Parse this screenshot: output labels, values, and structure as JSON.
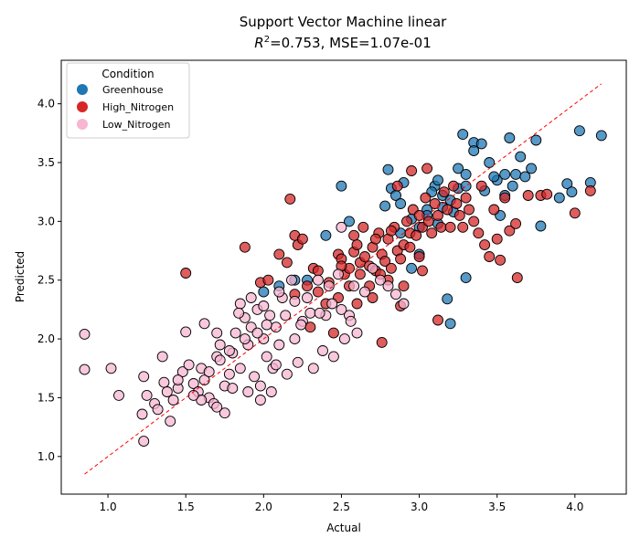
{
  "chart_data": {
    "type": "scatter",
    "title": "Support Vector Machine linear",
    "subtitle_prefix": "R",
    "subtitle_sup": "2",
    "subtitle_rest": "=0.753, MSE=1.07e-01",
    "xlabel": "Actual",
    "ylabel": "Predicted",
    "xlim": [
      0.7,
      4.33
    ],
    "ylim": [
      0.68,
      4.37
    ],
    "xticks": [
      "1.0",
      "1.5",
      "2.0",
      "2.5",
      "3.0",
      "3.5",
      "4.0"
    ],
    "yticks": [
      "1.0",
      "1.5",
      "2.0",
      "2.5",
      "3.0",
      "3.5",
      "4.0"
    ],
    "grid": false,
    "legend": {
      "title": "Condition",
      "placement": "top-left"
    },
    "reference_line": {
      "from": [
        0.85,
        0.85
      ],
      "to": [
        4.17,
        4.17
      ],
      "color": "#ff0000",
      "style": "dashed"
    },
    "series": [
      {
        "name": "Greenhouse",
        "color": "#1f77b4",
        "points": [
          [
            2.5,
            3.3
          ],
          [
            2.8,
            3.44
          ],
          [
            2.82,
            3.28
          ],
          [
            2.85,
            3.22
          ],
          [
            2.9,
            3.33
          ],
          [
            2.88,
            3.15
          ],
          [
            2.95,
            3.02
          ],
          [
            3.0,
            2.95
          ],
          [
            3.05,
            3.1
          ],
          [
            3.1,
            3.3
          ],
          [
            3.12,
            3.35
          ],
          [
            3.15,
            3.22
          ],
          [
            3.2,
            3.18
          ],
          [
            3.22,
            3.08
          ],
          [
            3.25,
            3.28
          ],
          [
            3.25,
            3.45
          ],
          [
            3.28,
            3.74
          ],
          [
            3.3,
            3.4
          ],
          [
            3.35,
            3.67
          ],
          [
            3.35,
            3.6
          ],
          [
            3.4,
            3.66
          ],
          [
            3.45,
            3.5
          ],
          [
            3.5,
            3.35
          ],
          [
            3.55,
            3.4
          ],
          [
            3.58,
            3.71
          ],
          [
            3.52,
            3.05
          ],
          [
            3.6,
            3.3
          ],
          [
            3.62,
            3.4
          ],
          [
            3.65,
            3.55
          ],
          [
            3.68,
            3.38
          ],
          [
            3.72,
            3.45
          ],
          [
            3.75,
            3.69
          ],
          [
            3.78,
            2.96
          ],
          [
            3.95,
            3.32
          ],
          [
            3.98,
            3.25
          ],
          [
            4.03,
            3.77
          ],
          [
            4.1,
            3.33
          ],
          [
            4.17,
            3.73
          ],
          [
            3.9,
            3.2
          ],
          [
            3.2,
            2.13
          ],
          [
            3.3,
            2.52
          ],
          [
            3.18,
            2.34
          ],
          [
            2.2,
            2.5
          ],
          [
            2.28,
            2.5
          ],
          [
            2.0,
            2.4
          ],
          [
            2.1,
            2.45
          ],
          [
            2.55,
            3.0
          ],
          [
            2.4,
            2.88
          ],
          [
            3.0,
            2.72
          ],
          [
            2.95,
            2.6
          ],
          [
            3.08,
            3.25
          ],
          [
            3.15,
            3.12
          ],
          [
            3.05,
            3.05
          ],
          [
            2.78,
            3.13
          ],
          [
            3.3,
            3.3
          ],
          [
            3.48,
            3.38
          ],
          [
            3.42,
            3.26
          ],
          [
            3.55,
            3.22
          ],
          [
            2.88,
            2.9
          ],
          [
            3.12,
            2.98
          ]
        ]
      },
      {
        "name": "High_Nitrogen",
        "color": "#d62728",
        "points": [
          [
            1.5,
            2.56
          ],
          [
            1.88,
            2.78
          ],
          [
            2.17,
            3.19
          ],
          [
            1.98,
            2.48
          ],
          [
            2.03,
            2.5
          ],
          [
            2.1,
            2.72
          ],
          [
            2.15,
            2.65
          ],
          [
            2.2,
            2.88
          ],
          [
            2.22,
            2.8
          ],
          [
            2.25,
            2.85
          ],
          [
            2.28,
            2.45
          ],
          [
            2.2,
            2.38
          ],
          [
            2.32,
            2.6
          ],
          [
            2.35,
            2.4
          ],
          [
            2.4,
            2.3
          ],
          [
            2.48,
            2.72
          ],
          [
            2.5,
            2.68
          ],
          [
            2.52,
            2.55
          ],
          [
            2.55,
            2.6
          ],
          [
            2.58,
            2.74
          ],
          [
            2.6,
            2.8
          ],
          [
            2.62,
            2.65
          ],
          [
            2.65,
            2.7
          ],
          [
            2.68,
            2.62
          ],
          [
            2.7,
            2.78
          ],
          [
            2.72,
            2.58
          ],
          [
            2.74,
            2.9
          ],
          [
            2.76,
            2.72
          ],
          [
            2.78,
            2.66
          ],
          [
            2.8,
            2.85
          ],
          [
            2.82,
            2.6
          ],
          [
            2.84,
            2.95
          ],
          [
            2.86,
            2.75
          ],
          [
            2.88,
            2.68
          ],
          [
            2.9,
            2.8
          ],
          [
            2.92,
            3.0
          ],
          [
            2.94,
            2.9
          ],
          [
            2.96,
            3.1
          ],
          [
            2.98,
            2.88
          ],
          [
            3.0,
            3.05
          ],
          [
            3.02,
            2.95
          ],
          [
            3.04,
            3.2
          ],
          [
            3.06,
            3.0
          ],
          [
            3.08,
            2.9
          ],
          [
            3.1,
            3.15
          ],
          [
            3.12,
            3.05
          ],
          [
            3.14,
            2.95
          ],
          [
            3.16,
            3.25
          ],
          [
            3.18,
            3.1
          ],
          [
            3.2,
            2.95
          ],
          [
            3.22,
            3.3
          ],
          [
            3.24,
            3.15
          ],
          [
            3.26,
            3.05
          ],
          [
            3.28,
            2.95
          ],
          [
            3.3,
            3.2
          ],
          [
            3.32,
            3.1
          ],
          [
            3.35,
            3.0
          ],
          [
            3.38,
            2.9
          ],
          [
            3.4,
            3.3
          ],
          [
            3.42,
            2.8
          ],
          [
            3.45,
            2.7
          ],
          [
            3.48,
            3.1
          ],
          [
            3.5,
            2.85
          ],
          [
            3.52,
            2.67
          ],
          [
            3.55,
            3.2
          ],
          [
            3.58,
            2.92
          ],
          [
            3.62,
            2.98
          ],
          [
            3.63,
            2.52
          ],
          [
            3.7,
            3.22
          ],
          [
            3.78,
            3.22
          ],
          [
            3.82,
            3.23
          ],
          [
            4.0,
            3.07
          ],
          [
            4.1,
            3.26
          ],
          [
            2.76,
            1.97
          ],
          [
            3.12,
            2.16
          ],
          [
            2.88,
            2.28
          ],
          [
            2.6,
            2.3
          ],
          [
            2.7,
            2.35
          ],
          [
            2.45,
            2.05
          ],
          [
            2.48,
            2.35
          ],
          [
            2.95,
            3.43
          ],
          [
            3.05,
            3.45
          ],
          [
            2.86,
            3.3
          ],
          [
            2.5,
            2.62
          ],
          [
            2.55,
            2.45
          ],
          [
            2.62,
            2.55
          ],
          [
            2.68,
            2.45
          ],
          [
            2.75,
            2.55
          ],
          [
            2.8,
            2.5
          ],
          [
            2.9,
            2.45
          ],
          [
            2.3,
            2.1
          ],
          [
            2.35,
            2.58
          ],
          [
            2.42,
            2.48
          ],
          [
            2.58,
            2.88
          ],
          [
            2.64,
            2.95
          ],
          [
            2.72,
            2.85
          ],
          [
            2.82,
            2.92
          ],
          [
            2.94,
            2.78
          ],
          [
            3.0,
            2.7
          ],
          [
            3.02,
            2.58
          ]
        ]
      },
      {
        "name": "Low_Nitrogen",
        "color": "#f7b6d2",
        "points": [
          [
            0.85,
            2.04
          ],
          [
            0.85,
            1.74
          ],
          [
            1.02,
            1.75
          ],
          [
            1.07,
            1.52
          ],
          [
            1.23,
            1.68
          ],
          [
            1.22,
            1.36
          ],
          [
            1.23,
            1.13
          ],
          [
            1.25,
            1.52
          ],
          [
            1.3,
            1.45
          ],
          [
            1.32,
            1.4
          ],
          [
            1.35,
            1.85
          ],
          [
            1.36,
            1.63
          ],
          [
            1.38,
            1.55
          ],
          [
            1.4,
            1.3
          ],
          [
            1.42,
            1.48
          ],
          [
            1.45,
            1.58
          ],
          [
            1.48,
            1.72
          ],
          [
            1.5,
            2.06
          ],
          [
            1.52,
            1.78
          ],
          [
            1.55,
            1.62
          ],
          [
            1.58,
            1.55
          ],
          [
            1.6,
            1.75
          ],
          [
            1.62,
            1.65
          ],
          [
            1.65,
            1.5
          ],
          [
            1.68,
            1.45
          ],
          [
            1.7,
            1.85
          ],
          [
            1.72,
            1.95
          ],
          [
            1.75,
            1.6
          ],
          [
            1.75,
            1.37
          ],
          [
            1.78,
            1.7
          ],
          [
            1.8,
            1.88
          ],
          [
            1.82,
            2.05
          ],
          [
            1.85,
            1.75
          ],
          [
            1.85,
            2.3
          ],
          [
            1.88,
            2.18
          ],
          [
            1.9,
            1.95
          ],
          [
            1.92,
            2.1
          ],
          [
            1.94,
            1.68
          ],
          [
            1.96,
            2.25
          ],
          [
            1.98,
            1.48
          ],
          [
            2.0,
            2.0
          ],
          [
            2.02,
            1.85
          ],
          [
            2.04,
            2.2
          ],
          [
            2.06,
            1.75
          ],
          [
            2.08,
            2.1
          ],
          [
            2.1,
            1.95
          ],
          [
            2.12,
            2.35
          ],
          [
            2.15,
            1.7
          ],
          [
            2.18,
            2.5
          ],
          [
            2.2,
            2.0
          ],
          [
            2.22,
            1.8
          ],
          [
            2.25,
            2.15
          ],
          [
            2.28,
            2.35
          ],
          [
            2.3,
            2.22
          ],
          [
            2.32,
            1.75
          ],
          [
            2.35,
            2.5
          ],
          [
            2.38,
            1.9
          ],
          [
            2.4,
            2.2
          ],
          [
            2.42,
            2.45
          ],
          [
            2.45,
            1.85
          ],
          [
            2.48,
            2.55
          ],
          [
            2.5,
            2.25
          ],
          [
            2.52,
            2.0
          ],
          [
            2.55,
            2.2
          ],
          [
            2.58,
            2.45
          ],
          [
            2.6,
            2.05
          ],
          [
            2.65,
            2.4
          ],
          [
            2.7,
            2.6
          ],
          [
            2.75,
            2.5
          ],
          [
            2.8,
            2.45
          ],
          [
            2.85,
            2.38
          ],
          [
            2.9,
            2.3
          ],
          [
            2.5,
            2.95
          ],
          [
            1.9,
            1.55
          ],
          [
            1.7,
            1.42
          ],
          [
            1.6,
            1.48
          ],
          [
            1.8,
            1.58
          ],
          [
            1.98,
            1.6
          ],
          [
            2.05,
            1.55
          ],
          [
            1.55,
            1.52
          ],
          [
            1.45,
            1.65
          ],
          [
            1.65,
            1.72
          ],
          [
            1.72,
            1.82
          ],
          [
            1.78,
            1.9
          ],
          [
            1.88,
            2.0
          ],
          [
            1.96,
            2.05
          ],
          [
            2.02,
            2.12
          ],
          [
            2.08,
            1.78
          ],
          [
            2.14,
            2.2
          ],
          [
            2.24,
            2.12
          ],
          [
            1.62,
            2.13
          ],
          [
            1.7,
            2.05
          ],
          [
            1.84,
            2.22
          ],
          [
            1.92,
            2.35
          ],
          [
            2.0,
            2.28
          ],
          [
            2.1,
            2.4
          ],
          [
            2.2,
            2.32
          ],
          [
            2.36,
            2.22
          ],
          [
            2.44,
            2.3
          ],
          [
            2.56,
            2.15
          ]
        ]
      }
    ]
  }
}
